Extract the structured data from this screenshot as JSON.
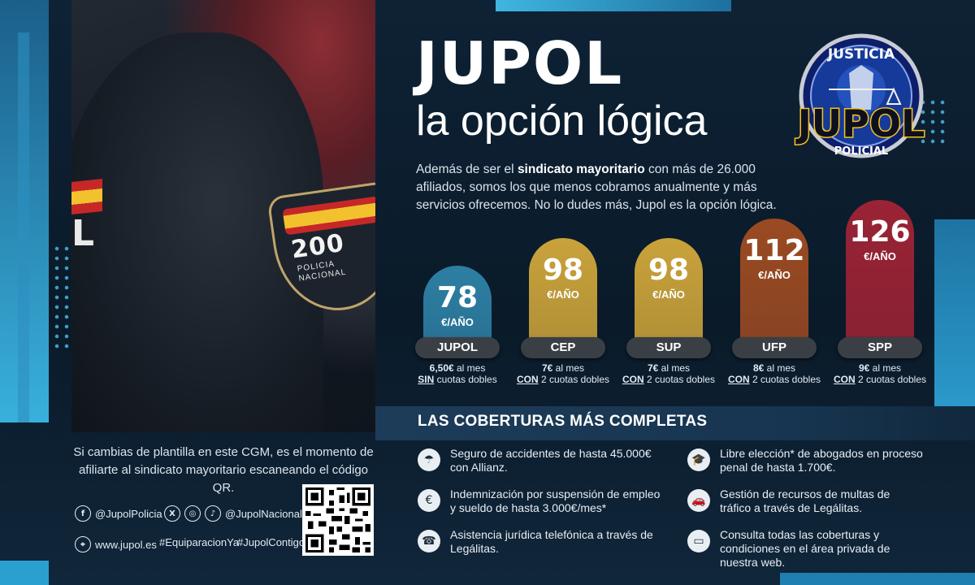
{
  "header": {
    "title": "JUPOL",
    "subtitle": "la opción lógica"
  },
  "logo": {
    "top_text": "JUSTICIA",
    "main_text": "JUPOL",
    "bottom_text": "POLICIAL"
  },
  "photo": {
    "patch_number": "200",
    "patch_text_1": "POLICIA",
    "patch_text_2": "NACIONAL",
    "sleeve_letter": "L"
  },
  "intro": {
    "part1": "Además de ser el ",
    "bold": "sindicato mayoritario",
    "part2": " con más de 26.000 afiliados, somos los que menos cobramos anualmente y más servicios ofrecemos. No lo dudes más, Jupol es la opción lógica."
  },
  "chart_data": {
    "type": "bar",
    "categories": [
      "JUPOL",
      "CEP",
      "SUP",
      "UFP",
      "SPP"
    ],
    "values": [
      78,
      98,
      98,
      112,
      126
    ],
    "unit": "€/AÑO",
    "colors": [
      "#2d7fa3",
      "#c9a23a",
      "#c9a23a",
      "#9b4a22",
      "#9a2335"
    ]
  },
  "fees": [
    {
      "price": "6,50€",
      "rest": " al mes",
      "em": "SIN",
      "tail": " cuotas dobles"
    },
    {
      "price": "7€",
      "rest": " al mes",
      "em": "CON",
      "tail": " 2 cuotas dobles"
    },
    {
      "price": "7€",
      "rest": " al mes",
      "em": "CON",
      "tail": " 2 cuotas dobles"
    },
    {
      "price": "8€",
      "rest": " al mes",
      "em": "CON",
      "tail": " 2 cuotas dobles"
    },
    {
      "price": "9€",
      "rest": " al mes",
      "em": "CON",
      "tail": " 2 cuotas dobles"
    }
  ],
  "coverage": {
    "title": "LAS COBERTURAS MÁS COMPLETAS",
    "items": [
      {
        "icon": "insurance-icon",
        "text": "Seguro de accidentes de hasta 45.000€ con Allianz."
      },
      {
        "icon": "graduation-cap-icon",
        "text": "Libre elección* de abogados en proceso penal de hasta 1.700€."
      },
      {
        "icon": "hand-money-icon",
        "text": "Indemnización por suspensión de empleo y sueldo de hasta 3.000€/mes*"
      },
      {
        "icon": "car-icon",
        "text": "Gestión de recursos de multas de tráfico a través de Legálitas."
      },
      {
        "icon": "phone-icon",
        "text": "Asistencia jurídica telefónica a través de Legálitas."
      },
      {
        "icon": "card-click-icon",
        "text": "Consulta todas las coberturas y condiciones en el área privada de nuestra web."
      }
    ]
  },
  "footer": {
    "cta": "Si cambias de plantilla en este CGM, es el momento de afiliarte al sindicato mayoritario escaneando el código QR.",
    "facebook": "@JupolPolicia",
    "other_social": "@JupolNacional",
    "web": "www.jupol.es",
    "hashtag1": "#EquiparacionYa",
    "hashtag2": "#JupolContigo"
  }
}
